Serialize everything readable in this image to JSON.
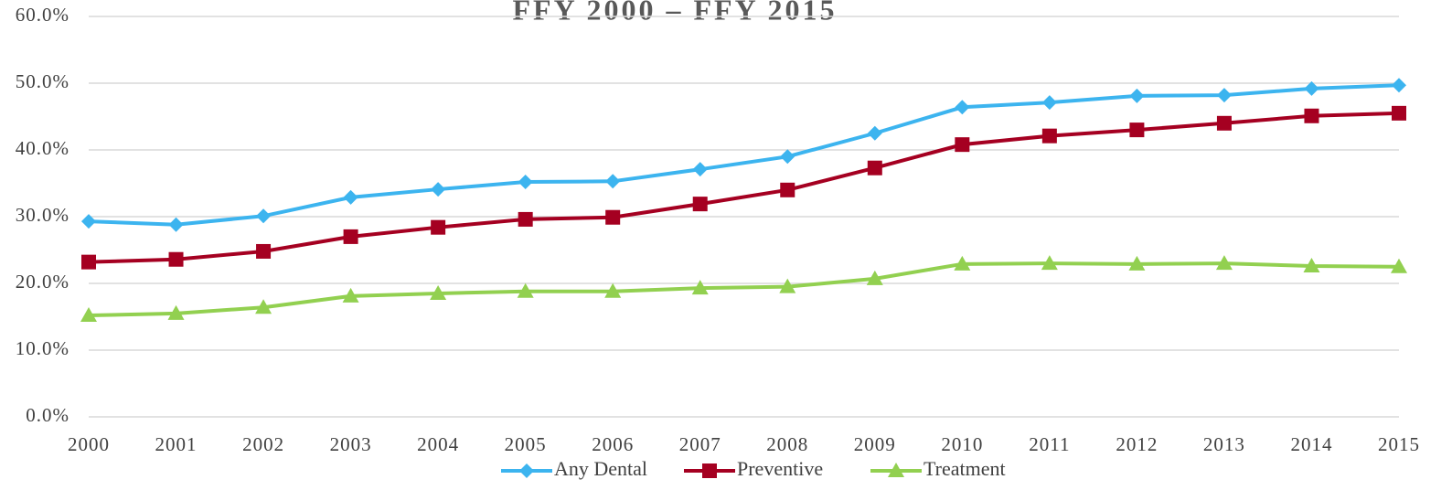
{
  "chart_data": {
    "type": "line",
    "title": "FFY 2000 – FFY 2015",
    "categories": [
      "2000",
      "2001",
      "2002",
      "2003",
      "2004",
      "2005",
      "2006",
      "2007",
      "2008",
      "2009",
      "2010",
      "2011",
      "2012",
      "2013",
      "2014",
      "2015"
    ],
    "series": [
      {
        "name": "Any Dental",
        "color": "#3cb4ef",
        "marker": "diamond",
        "values": [
          29.3,
          28.8,
          30.1,
          32.9,
          34.1,
          35.2,
          35.3,
          37.1,
          39.0,
          42.5,
          46.4,
          47.1,
          48.1,
          48.2,
          49.2,
          49.7
        ]
      },
      {
        "name": "Preventive",
        "color": "#a50021",
        "marker": "square",
        "values": [
          23.2,
          23.6,
          24.8,
          27.0,
          28.4,
          29.6,
          29.9,
          31.9,
          34.0,
          37.3,
          40.8,
          42.1,
          43.0,
          44.0,
          45.1,
          45.5
        ]
      },
      {
        "name": "Treatment",
        "color": "#92d050",
        "marker": "triangle",
        "values": [
          15.2,
          15.5,
          16.4,
          18.1,
          18.5,
          18.8,
          18.8,
          19.3,
          19.5,
          20.7,
          22.9,
          23.0,
          22.9,
          23.0,
          22.6,
          22.5
        ]
      }
    ],
    "ylim": [
      0,
      60
    ],
    "yticks": [
      {
        "value": 0,
        "label": "0.0%"
      },
      {
        "value": 10,
        "label": "10.0%"
      },
      {
        "value": 20,
        "label": "20.0%"
      },
      {
        "value": 30,
        "label": "30.0%"
      },
      {
        "value": 40,
        "label": "40.0%"
      },
      {
        "value": 50,
        "label": "50.0%"
      },
      {
        "value": 60,
        "label": "60.0%"
      }
    ],
    "grid": true,
    "legend": "bottom"
  }
}
